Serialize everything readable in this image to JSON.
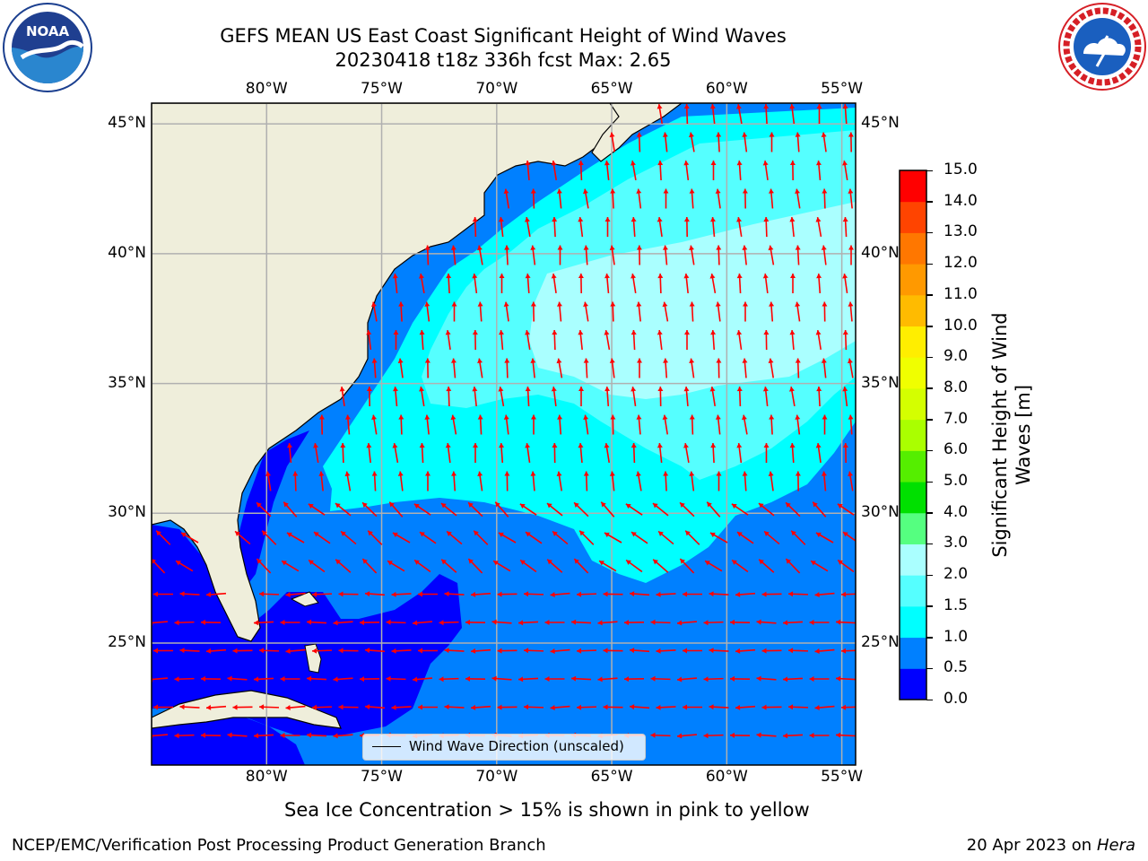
{
  "header": {
    "title_line1": "GEFS MEAN US East Coast Significant Height of Wind Waves",
    "title_line2": "20230418 t18z 336h fcst   Max: 2.65"
  },
  "logos": {
    "noaa_text": "NOAA",
    "nws_text": "NATIONAL WEATHER SERVICE"
  },
  "map": {
    "lon_labels": [
      "80°W",
      "75°W",
      "70°W",
      "65°W",
      "60°W",
      "55°W"
    ],
    "lat_labels": [
      "45°N",
      "40°N",
      "35°N",
      "30°N",
      "25°N"
    ],
    "lon_range": [
      -85,
      -54.4
    ],
    "lat_range": [
      20.3,
      45.8
    ],
    "grid": true,
    "land_color": "#efeedb",
    "arrow_color": "#ff0000",
    "grid_color": "#b0b0b0"
  },
  "legend": {
    "label": "Wind Wave Direction (unscaled)"
  },
  "colorbar": {
    "title_line1": "Significant Height of Wind",
    "title_line2": "Waves [m]",
    "tick_labels": [
      "15.0",
      "14.0",
      "13.0",
      "12.0",
      "11.0",
      "10.0",
      "9.0",
      "8.0",
      "7.0",
      "6.0",
      "5.0",
      "4.0",
      "3.0",
      "2.0",
      "1.5",
      "1.0",
      "0.5",
      "0.0"
    ],
    "bands": [
      {
        "range": "0.0-0.5",
        "color": "#0000ff"
      },
      {
        "range": "0.5-1.0",
        "color": "#0080ff"
      },
      {
        "range": "1.0-1.5",
        "color": "#00ffff"
      },
      {
        "range": "1.5-2.0",
        "color": "#55ffff"
      },
      {
        "range": "2.0-3.0",
        "color": "#aaffff"
      },
      {
        "range": "3.0-4.0",
        "color": "#55ff80"
      },
      {
        "range": "4.0-5.0",
        "color": "#00e000"
      },
      {
        "range": "5.0-6.0",
        "color": "#55ee00"
      },
      {
        "range": "6.0-7.0",
        "color": "#aaff00"
      },
      {
        "range": "7.0-8.0",
        "color": "#d4ff00"
      },
      {
        "range": "8.0-9.0",
        "color": "#f0ff00"
      },
      {
        "range": "9.0-10.0",
        "color": "#ffee00"
      },
      {
        "range": "10.0-11.0",
        "color": "#ffbb00"
      },
      {
        "range": "11.0-12.0",
        "color": "#ff9900"
      },
      {
        "range": "12.0-13.0",
        "color": "#ff7700"
      },
      {
        "range": "13.0-14.0",
        "color": "#ff4400"
      },
      {
        "range": "14.0-15.0",
        "color": "#ff0000"
      }
    ]
  },
  "notes": {
    "sea_ice": "Sea Ice Concentration > 15% is shown in pink to yellow"
  },
  "footer": {
    "left": "NCEP/EMC/Verification Post Processing Product Generation Branch",
    "right_prefix": "20 Apr 2023 on ",
    "right_host": "Hera"
  }
}
